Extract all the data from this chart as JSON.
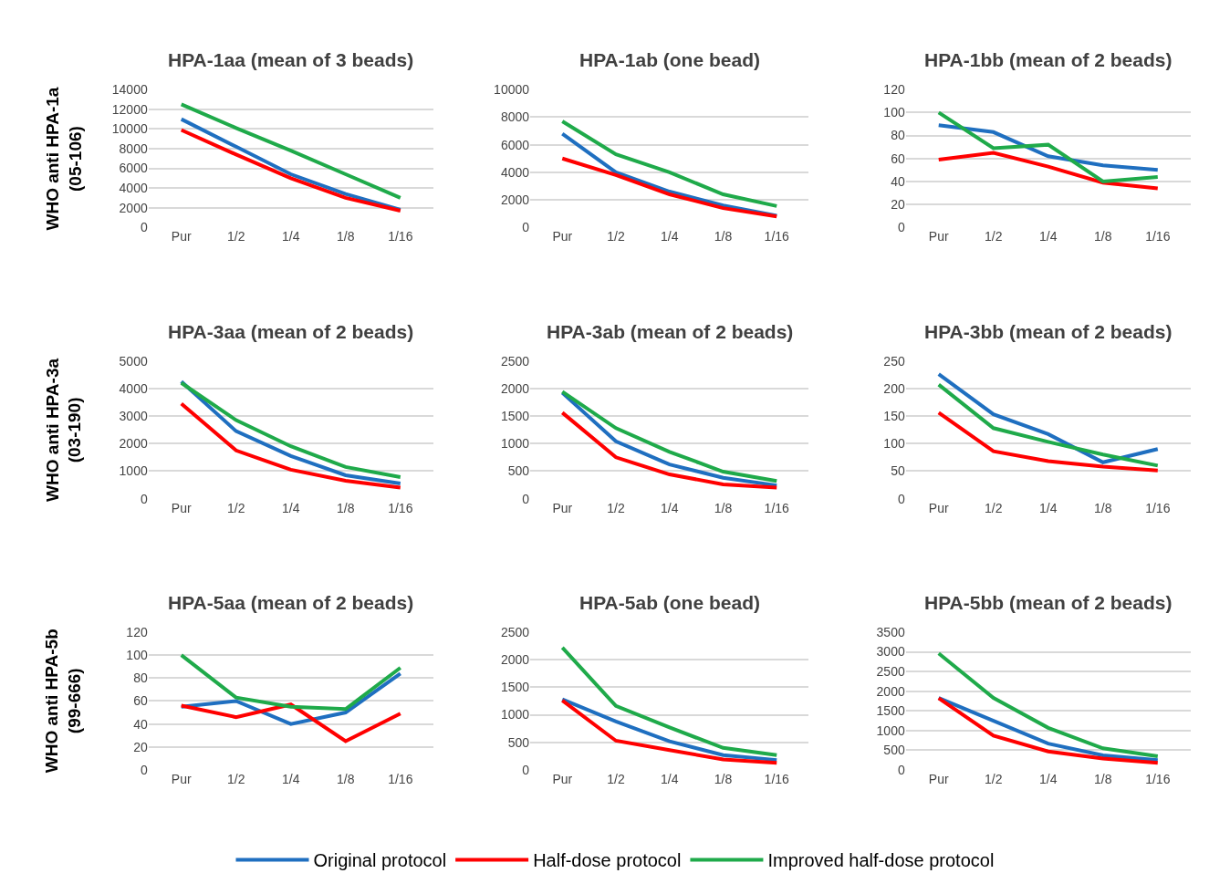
{
  "chart_data": [
    {
      "type": "line",
      "title": "HPA-1aa (mean of 3 beads)",
      "ylabel": "WHO anti HPA-1a\n(05-106)",
      "categories": [
        "Pur",
        "1/2",
        "1/4",
        "1/8",
        "1/16"
      ],
      "ylim": [
        0,
        14000
      ],
      "yticks": [
        0,
        2000,
        4000,
        6000,
        8000,
        10000,
        12000,
        14000
      ],
      "grid": "y",
      "legend": "bottom",
      "series": [
        {
          "name": "Original protocol",
          "color": "#1f6fc0",
          "values": [
            11000,
            8200,
            5400,
            3400,
            1800
          ]
        },
        {
          "name": "Half-dose protocol",
          "color": "#ff0000",
          "values": [
            9900,
            7400,
            5000,
            3000,
            1700
          ]
        },
        {
          "name": "Improved half-dose protocol",
          "color": "#1faa4a",
          "values": [
            12500,
            10100,
            7800,
            5400,
            3000
          ]
        }
      ]
    },
    {
      "type": "line",
      "title": "HPA-1ab (one bead)",
      "categories": [
        "Pur",
        "1/2",
        "1/4",
        "1/8",
        "1/16"
      ],
      "ylim": [
        0,
        10000
      ],
      "yticks": [
        0,
        2000,
        4000,
        6000,
        8000,
        10000
      ],
      "grid": "y",
      "series": [
        {
          "color": "#1f6fc0",
          "values": [
            6800,
            4000,
            2600,
            1600,
            850
          ]
        },
        {
          "color": "#ff0000",
          "values": [
            5000,
            3800,
            2400,
            1400,
            800
          ]
        },
        {
          "color": "#1faa4a",
          "values": [
            7700,
            5300,
            4000,
            2400,
            1550
          ]
        }
      ]
    },
    {
      "type": "line",
      "title": "HPA-1bb (mean of 2 beads)",
      "categories": [
        "Pur",
        "1/2",
        "1/4",
        "1/8",
        "1/16"
      ],
      "ylim": [
        0,
        120
      ],
      "yticks": [
        0,
        20,
        40,
        60,
        80,
        100,
        120
      ],
      "grid": "y",
      "series": [
        {
          "color": "#1f6fc0",
          "values": [
            89,
            83,
            62,
            54,
            50
          ]
        },
        {
          "color": "#ff0000",
          "values": [
            59,
            65,
            53,
            39,
            34
          ]
        },
        {
          "color": "#1faa4a",
          "values": [
            100,
            69,
            72,
            40,
            44
          ]
        }
      ]
    },
    {
      "type": "line",
      "title": "HPA-3aa (mean of 2 beads)",
      "ylabel": "WHO anti HPA-3a\n(03-190)",
      "categories": [
        "Pur",
        "1/2",
        "1/4",
        "1/8",
        "1/16"
      ],
      "ylim": [
        0,
        5000
      ],
      "yticks": [
        0,
        1000,
        2000,
        3000,
        4000,
        5000
      ],
      "grid": "y",
      "series": [
        {
          "color": "#1f6fc0",
          "values": [
            4250,
            2450,
            1550,
            850,
            550
          ]
        },
        {
          "color": "#ff0000",
          "values": [
            3450,
            1750,
            1050,
            650,
            400
          ]
        },
        {
          "color": "#1faa4a",
          "values": [
            4200,
            2850,
            1900,
            1150,
            780
          ]
        }
      ]
    },
    {
      "type": "line",
      "title": "HPA-3ab (mean of 2 beads)",
      "categories": [
        "Pur",
        "1/2",
        "1/4",
        "1/8",
        "1/16"
      ],
      "ylim": [
        0,
        2500
      ],
      "yticks": [
        0,
        500,
        1000,
        1500,
        2000,
        2500
      ],
      "grid": "y",
      "series": [
        {
          "color": "#1f6fc0",
          "values": [
            1920,
            1040,
            620,
            380,
            240
          ]
        },
        {
          "color": "#ff0000",
          "values": [
            1560,
            750,
            440,
            260,
            200
          ]
        },
        {
          "color": "#1faa4a",
          "values": [
            1940,
            1280,
            850,
            490,
            320
          ]
        }
      ]
    },
    {
      "type": "line",
      "title": "HPA-3bb (mean of 2 beads)",
      "categories": [
        "Pur",
        "1/2",
        "1/4",
        "1/8",
        "1/16"
      ],
      "ylim": [
        0,
        250
      ],
      "yticks": [
        0,
        50,
        100,
        150,
        200,
        250
      ],
      "grid": "y",
      "series": [
        {
          "color": "#1f6fc0",
          "values": [
            226,
            153,
            117,
            66,
            90
          ]
        },
        {
          "color": "#ff0000",
          "values": [
            156,
            86,
            68,
            58,
            51
          ]
        },
        {
          "color": "#1faa4a",
          "values": [
            207,
            128,
            103,
            80,
            60
          ]
        }
      ]
    },
    {
      "type": "line",
      "title": "HPA-5aa (mean of 2 beads)",
      "ylabel": "WHO anti HPA-5b\n(99-666)",
      "categories": [
        "Pur",
        "1/2",
        "1/4",
        "1/8",
        "1/16"
      ],
      "ylim": [
        0,
        120
      ],
      "yticks": [
        0,
        20,
        40,
        60,
        80,
        100,
        120
      ],
      "grid": "y",
      "series": [
        {
          "color": "#1f6fc0",
          "values": [
            55,
            60,
            40,
            50,
            84
          ]
        },
        {
          "color": "#ff0000",
          "values": [
            56,
            46,
            57,
            25,
            49
          ]
        },
        {
          "color": "#1faa4a",
          "values": [
            100,
            63,
            55,
            53,
            89
          ]
        }
      ]
    },
    {
      "type": "line",
      "title": "HPA-5ab (one bead)",
      "categories": [
        "Pur",
        "1/2",
        "1/4",
        "1/8",
        "1/16"
      ],
      "ylim": [
        0,
        2500
      ],
      "yticks": [
        0,
        500,
        1000,
        1500,
        2000,
        2500
      ],
      "grid": "y",
      "series": [
        {
          "color": "#1f6fc0",
          "values": [
            1280,
            880,
            520,
            270,
            180
          ]
        },
        {
          "color": "#ff0000",
          "values": [
            1260,
            530,
            360,
            190,
            130
          ]
        },
        {
          "color": "#1faa4a",
          "values": [
            2220,
            1160,
            770,
            400,
            270
          ]
        }
      ]
    },
    {
      "type": "line",
      "title": "HPA-5bb (mean of 2 beads)",
      "categories": [
        "Pur",
        "1/2",
        "1/4",
        "1/8",
        "1/16"
      ],
      "ylim": [
        0,
        3500
      ],
      "yticks": [
        0,
        500,
        1000,
        1500,
        2000,
        2500,
        3000,
        3500
      ],
      "grid": "y",
      "series": [
        {
          "color": "#1f6fc0",
          "values": [
            1830,
            1250,
            670,
            370,
            250
          ]
        },
        {
          "color": "#ff0000",
          "values": [
            1820,
            870,
            470,
            290,
            180
          ]
        },
        {
          "color": "#1faa4a",
          "values": [
            2960,
            1830,
            1070,
            550,
            350
          ]
        }
      ]
    }
  ]
}
